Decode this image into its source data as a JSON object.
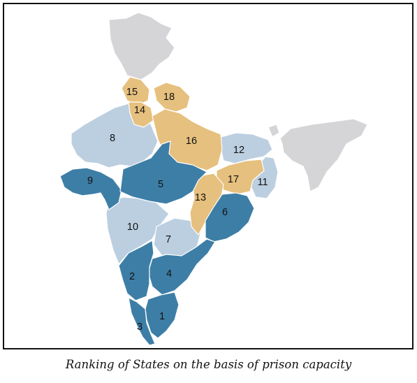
{
  "caption": "Ranking of States on the basis of prison capacity",
  "colors": {
    "dark_blue": "#3d7ea6",
    "light_blue": "#bccfe0",
    "tan": "#e6c07e",
    "grey": "#d5d5d8",
    "border": "#111111"
  },
  "rankings": [
    {
      "rank": "1",
      "group": "dark_blue"
    },
    {
      "rank": "2",
      "group": "dark_blue"
    },
    {
      "rank": "3",
      "group": "dark_blue"
    },
    {
      "rank": "4",
      "group": "dark_blue"
    },
    {
      "rank": "5",
      "group": "dark_blue"
    },
    {
      "rank": "6",
      "group": "dark_blue"
    },
    {
      "rank": "7",
      "group": "light_blue"
    },
    {
      "rank": "8",
      "group": "light_blue"
    },
    {
      "rank": "9",
      "group": "dark_blue"
    },
    {
      "rank": "10",
      "group": "light_blue"
    },
    {
      "rank": "11",
      "group": "light_blue"
    },
    {
      "rank": "12",
      "group": "light_blue"
    },
    {
      "rank": "13",
      "group": "tan"
    },
    {
      "rank": "14",
      "group": "tan"
    },
    {
      "rank": "15",
      "group": "tan"
    },
    {
      "rank": "16",
      "group": "tan"
    },
    {
      "rank": "17",
      "group": "tan"
    },
    {
      "rank": "18",
      "group": "tan"
    }
  ]
}
